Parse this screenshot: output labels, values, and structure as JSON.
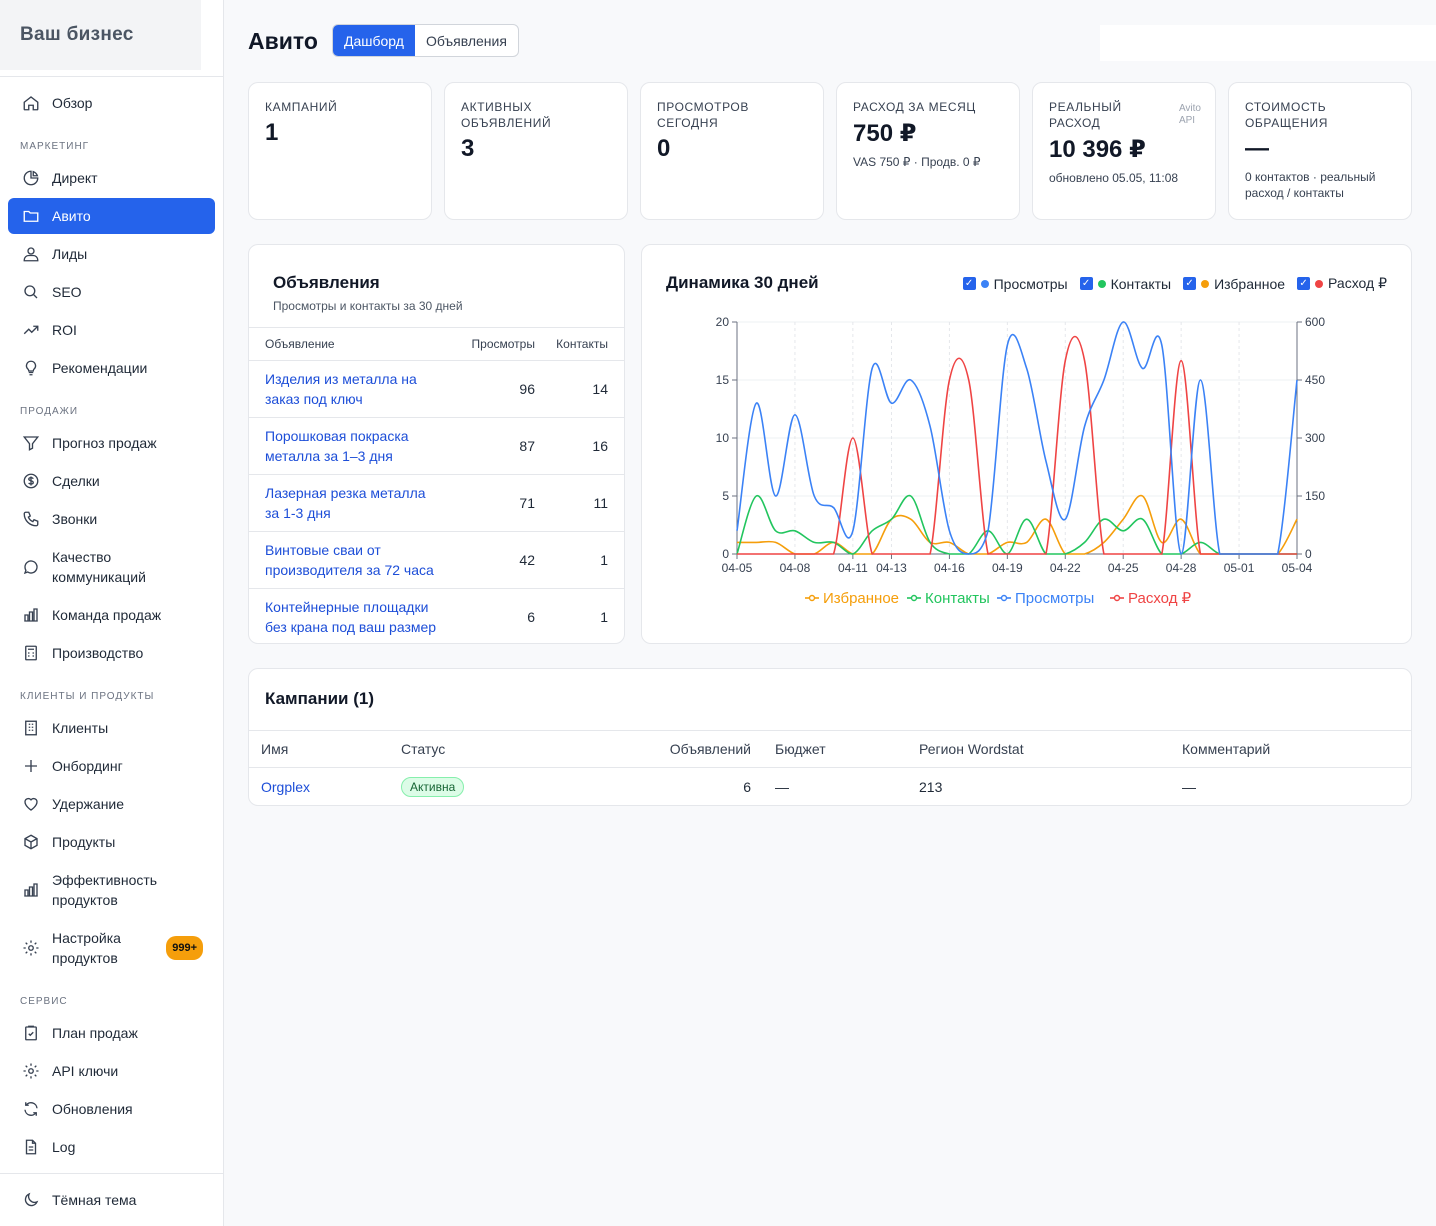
{
  "sidebar": {
    "brand": "Ваш бизнес",
    "overview": "Обзор",
    "sections": {
      "marketing": "МАРКЕТИНГ",
      "sales": "ПРОДАЖИ",
      "clients": "КЛИЕНТЫ И ПРОДУКТЫ",
      "service": "СЕРВИС"
    },
    "items": {
      "direct": "Директ",
      "avito": "Авито",
      "leads": "Лиды",
      "seo": "SEO",
      "roi": "ROI",
      "recommendations": "Рекомендации",
      "forecast": "Прогноз продаж",
      "deals": "Сделки",
      "calls": "Звонки",
      "quality_1": "Качество",
      "quality_2": "коммуникаций",
      "team": "Команда продаж",
      "production": "Производство",
      "clients": "Клиенты",
      "onboarding": "Онбординг",
      "retention": "Удержание",
      "products": "Продукты",
      "efficiency_1": "Эффективность",
      "efficiency_2": "продуктов",
      "product_settings_1": "Настройка",
      "product_settings_2": "продуктов",
      "product_settings_badge": "999+",
      "sales_plan": "План продаж",
      "api_keys": "API ключи",
      "updates": "Обновления",
      "log": "Log"
    },
    "theme_toggle": "Тёмная тема"
  },
  "header": {
    "title": "Авито",
    "tabs": [
      "Дашборд",
      "Объявления"
    ]
  },
  "kpis": [
    {
      "label": "КАМПАНИЙ",
      "value": "1",
      "sub": ""
    },
    {
      "label": "АКТИВНЫХ ОБЪЯВЛЕНИЙ",
      "value": "3",
      "sub": ""
    },
    {
      "label": "ПРОСМОТРОВ СЕГОДНЯ",
      "value": "0",
      "sub": ""
    },
    {
      "label": "РАСХОД ЗА МЕСЯЦ",
      "value": "750 ₽",
      "sub": "VAS 750 ₽ · Продв. 0 ₽"
    },
    {
      "label": "РЕАЛЬНЫЙ РАСХОД",
      "value": "10 396 ₽",
      "sub": "обновлено 05.05, 11:08",
      "tag_1": "Avito",
      "tag_2": "API"
    },
    {
      "label": "СТОИМОСТЬ ОБРАЩЕНИЯ",
      "value": "—",
      "sub": "0 контактов · реальный расход / контакты"
    }
  ],
  "listings": {
    "title": "Объявления",
    "subtitle": "Просмотры и контакты за 30 дней",
    "columns": [
      "Объявление",
      "Просмотры",
      "Контакты"
    ],
    "rows": [
      {
        "name_1": "Изделия из металла на",
        "name_2": "заказ под ключ",
        "views": "96",
        "contacts": "14"
      },
      {
        "name_1": "Порошковая покраска",
        "name_2": "металла за 1–3 дня",
        "views": "87",
        "contacts": "16"
      },
      {
        "name_1": "Лазерная резка металла",
        "name_2": "за 1-3 дня",
        "views": "71",
        "contacts": "11"
      },
      {
        "name_1": "Винтовые сваи от",
        "name_2": "производителя за 72 часа",
        "views": "42",
        "contacts": "1"
      },
      {
        "name_1": "Контейнерные площадки",
        "name_2": "без крана под ваш размер",
        "views": "6",
        "contacts": "1"
      }
    ]
  },
  "chart_data": {
    "type": "line",
    "title": "Динамика 30 дней",
    "x": [
      "04-05",
      "04-06",
      "04-07",
      "04-08",
      "04-09",
      "04-10",
      "04-11",
      "04-12",
      "04-13",
      "04-14",
      "04-15",
      "04-16",
      "04-17",
      "04-18",
      "04-19",
      "04-20",
      "04-21",
      "04-22",
      "04-23",
      "04-24",
      "04-25",
      "04-26",
      "04-27",
      "04-28",
      "04-29",
      "04-30",
      "05-01",
      "05-02",
      "05-03",
      "05-04"
    ],
    "x_ticks": [
      "04-05",
      "04-08",
      "04-11",
      "04-13",
      "04-16",
      "04-19",
      "04-22",
      "04-25",
      "04-28",
      "05-01",
      "05-04"
    ],
    "y_left": {
      "min": 0,
      "max": 20,
      "ticks": [
        "0",
        "5",
        "10",
        "15",
        "20"
      ]
    },
    "y_right": {
      "min": 0,
      "max": 600,
      "ticks": [
        "0",
        "150",
        "300",
        "450",
        "600"
      ]
    },
    "series": [
      {
        "name": "Просмотры",
        "color": "#3b82f6",
        "axis": "left",
        "values": [
          2,
          13,
          5,
          12,
          5,
          4,
          2,
          16,
          13,
          15,
          11,
          2,
          0,
          2,
          18,
          16,
          8,
          3,
          11,
          15,
          20,
          16,
          18,
          0,
          15,
          0,
          0,
          0,
          0,
          15
        ]
      },
      {
        "name": "Контакты",
        "color": "#22c55e",
        "axis": "left",
        "values": [
          0,
          5,
          2,
          2,
          1,
          1,
          0,
          2,
          3,
          5,
          1,
          0,
          0,
          2,
          0,
          3,
          0,
          0,
          1,
          3,
          2,
          3,
          0,
          0,
          1,
          0,
          0,
          0,
          0,
          0
        ]
      },
      {
        "name": "Избранное",
        "color": "#f59e0b",
        "axis": "left",
        "values": [
          1,
          1,
          1,
          0,
          0,
          1,
          0,
          0,
          3,
          3,
          1,
          1,
          0,
          0,
          1,
          1,
          3,
          0,
          0,
          1,
          3,
          5,
          1,
          3,
          0,
          0,
          0,
          0,
          0,
          3
        ]
      },
      {
        "name": "Расход ₽",
        "color": "#ef4444",
        "axis": "right",
        "values": [
          0,
          0,
          0,
          0,
          0,
          0,
          300,
          0,
          0,
          0,
          0,
          450,
          450,
          0,
          0,
          0,
          0,
          500,
          500,
          0,
          0,
          0,
          0,
          500,
          0,
          0,
          0,
          0,
          0,
          0
        ]
      }
    ],
    "legend_top": [
      "Просмотры",
      "Контакты",
      "Избранное",
      "Расход ₽"
    ],
    "legend_bottom": [
      "Избранное",
      "Контакты",
      "Просмотры",
      "Расход ₽"
    ]
  },
  "campaigns": {
    "title": "Кампании (1)",
    "columns": [
      "Имя",
      "Статус",
      "Объявлений",
      "Бюджет",
      "Регион Wordstat",
      "Комментарий"
    ],
    "rows": [
      {
        "name": "Orgplex",
        "status": "Активна",
        "ads": "6",
        "budget": "—",
        "region": "213",
        "comment": "—"
      }
    ]
  }
}
